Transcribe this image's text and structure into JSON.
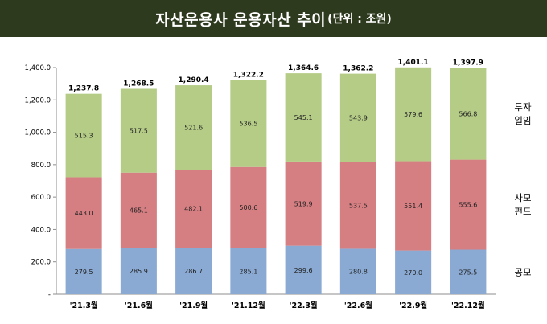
{
  "title": {
    "main": "자산운용사 운용자산 추이",
    "sub": "(단위 : 조원)"
  },
  "colors": {
    "header_bg": "#2e3a1e",
    "public": "#8aaad3",
    "private": "#d67f82",
    "discretionary": "#b5cc87"
  },
  "chart_data": {
    "type": "bar",
    "stacked": true,
    "title": "자산운용사 운용자산 추이(단위 : 조원)",
    "categories": [
      "'21.3월",
      "'21.6월",
      "'21.9월",
      "'21.12월",
      "'22.3월",
      "'22.6월",
      "'22.9월",
      "'22.12월"
    ],
    "series": [
      {
        "name": "공모",
        "values": [
          279.5,
          285.9,
          286.7,
          285.1,
          299.6,
          280.8,
          270.0,
          275.5
        ]
      },
      {
        "name": "사모 펀드",
        "values": [
          443.0,
          465.1,
          482.1,
          500.6,
          519.9,
          537.5,
          551.4,
          555.6
        ]
      },
      {
        "name": "투자 일임",
        "values": [
          515.3,
          517.5,
          521.6,
          536.5,
          545.1,
          543.9,
          579.6,
          566.8
        ]
      }
    ],
    "totals": [
      "1,237.8",
      "1,268.5",
      "1,290.4",
      "1,322.2",
      "1,364.6",
      "1,362.2",
      "1,401.1",
      "1,397.9"
    ],
    "series_labels": [
      [
        "279.5",
        "285.9",
        "286.7",
        "285.1",
        "299.6",
        "280.8",
        "270.0",
        "275.5"
      ],
      [
        "443.0",
        "465.1",
        "482.1",
        "500.6",
        "519.9",
        "537.5",
        "551.4",
        "555.6"
      ],
      [
        "515.3",
        "517.5",
        "521.6",
        "536.5",
        "545.1",
        "543.9",
        "579.6",
        "566.8"
      ]
    ],
    "legend": [
      [
        "공모"
      ],
      [
        "사모",
        "펀드"
      ],
      [
        "투자",
        "일임"
      ]
    ],
    "ylim": [
      0,
      1400
    ],
    "yticks": [
      "-",
      "200.0",
      "400.0",
      "600.0",
      "800.0",
      "1,000.0",
      "1,200.0",
      "1,400.0"
    ],
    "grid": false,
    "legend_position": "right"
  }
}
